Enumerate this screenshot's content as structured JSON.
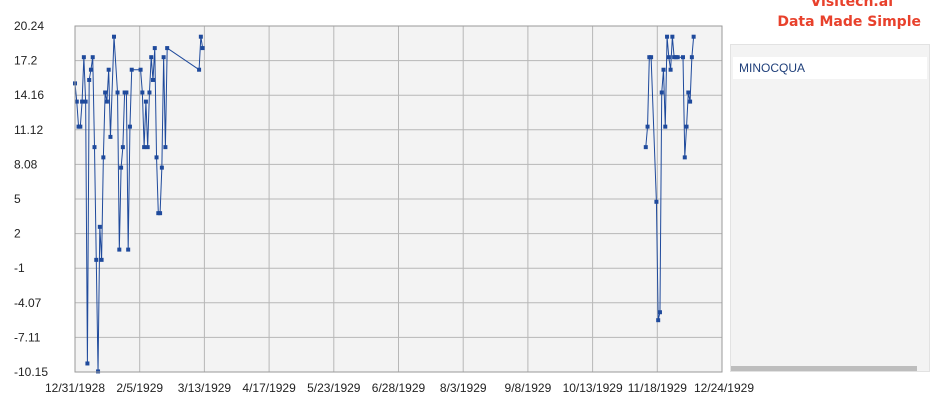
{
  "brand": {
    "line1": "Visitech.ai",
    "line2": "Data Made Simple"
  },
  "chart_data": {
    "type": "line",
    "title": "",
    "xlabel": "",
    "ylabel": "",
    "x_ticks": [
      "12/31/1928",
      "2/5/1929",
      "3/13/1929",
      "4/17/1929",
      "5/23/1929",
      "6/28/1929",
      "8/3/1929",
      "9/8/1929",
      "10/13/1929",
      "11/18/1929",
      "12/24/1929"
    ],
    "y_ticks": [
      "20.24",
      "17.2",
      "14.16",
      "11.12",
      "8.08",
      "5",
      "2",
      "-1",
      "-4.07",
      "-7.11",
      "-10.15"
    ],
    "x_range": [
      "1928-12-31",
      "1929-12-31"
    ],
    "ylim": [
      -10.15,
      20.24
    ],
    "grid": true,
    "legend_position": "right",
    "colors": {
      "series": "#1f4a9c",
      "plot_bg": "#f3f3f3",
      "grid": "#b7b7b7"
    },
    "series": [
      {
        "name": "MINOCQUA",
        "points": [
          [
            "1928-12-31",
            15.2
          ],
          [
            "1929-01-01",
            13.6
          ],
          [
            "1929-01-02",
            11.4
          ],
          [
            "1929-01-03",
            11.4
          ],
          [
            "1929-01-04",
            13.6
          ],
          [
            "1929-01-05",
            17.5
          ],
          [
            "1929-01-06",
            13.6
          ],
          [
            "1929-01-07",
            -9.4
          ],
          [
            "1929-01-08",
            15.5
          ],
          [
            "1929-01-09",
            16.4
          ],
          [
            "1929-01-10",
            17.5
          ],
          [
            "1929-01-11",
            9.6
          ],
          [
            "1929-01-12",
            -0.3
          ],
          [
            "1929-01-13",
            -10.1
          ],
          [
            "1929-01-14",
            2.6
          ],
          [
            "1929-01-15",
            -0.3
          ],
          [
            "1929-01-16",
            8.7
          ],
          [
            "1929-01-17",
            14.4
          ],
          [
            "1929-01-18",
            13.6
          ],
          [
            "1929-01-19",
            16.4
          ],
          [
            "1929-01-20",
            10.5
          ],
          [
            "1929-01-22",
            19.3
          ],
          [
            "1929-01-24",
            14.4
          ],
          [
            "1929-01-25",
            0.6
          ],
          [
            "1929-01-26",
            7.8
          ],
          [
            "1929-01-27",
            9.6
          ],
          [
            "1929-01-28",
            14.4
          ],
          [
            "1929-01-29",
            14.4
          ],
          [
            "1929-01-30",
            0.6
          ],
          [
            "1929-01-31",
            11.4
          ],
          [
            "1929-02-01",
            16.4
          ],
          [
            "1929-02-06",
            16.4
          ],
          [
            "1929-02-07",
            14.4
          ],
          [
            "1929-02-08",
            9.6
          ],
          [
            "1929-02-09",
            13.6
          ],
          [
            "1929-02-10",
            9.6
          ],
          [
            "1929-02-11",
            14.4
          ],
          [
            "1929-02-12",
            17.5
          ],
          [
            "1929-02-13",
            15.5
          ],
          [
            "1929-02-14",
            18.3
          ],
          [
            "1929-02-15",
            8.7
          ],
          [
            "1929-02-16",
            3.8
          ],
          [
            "1929-02-17",
            3.8
          ],
          [
            "1929-02-18",
            7.8
          ],
          [
            "1929-02-19",
            17.5
          ],
          [
            "1929-02-20",
            9.6
          ],
          [
            "1929-02-21",
            18.3
          ],
          [
            "1929-03-11",
            16.4
          ],
          [
            "1929-03-12",
            19.3
          ],
          [
            "1929-03-13",
            18.3
          ],
          [
            "1929-11-18",
            9.6
          ],
          [
            "1929-11-19",
            11.4
          ],
          [
            "1929-11-20",
            17.5
          ],
          [
            "1929-11-21",
            17.5
          ],
          [
            "1929-11-24",
            4.8
          ],
          [
            "1929-11-25",
            -5.6
          ],
          [
            "1929-11-26",
            -4.9
          ],
          [
            "1929-11-27",
            14.4
          ],
          [
            "1929-11-28",
            16.4
          ],
          [
            "1929-11-29",
            11.4
          ],
          [
            "1929-11-30",
            19.3
          ],
          [
            "1929-12-01",
            17.5
          ],
          [
            "1929-12-02",
            16.4
          ],
          [
            "1929-12-03",
            19.3
          ],
          [
            "1929-12-04",
            17.5
          ],
          [
            "1929-12-05",
            17.5
          ],
          [
            "1929-12-06",
            17.5
          ],
          [
            "1929-12-09",
            17.5
          ],
          [
            "1929-12-10",
            8.7
          ],
          [
            "1929-12-11",
            11.4
          ],
          [
            "1929-12-12",
            14.4
          ],
          [
            "1929-12-13",
            13.6
          ],
          [
            "1929-12-14",
            17.5
          ],
          [
            "1929-12-15",
            19.3
          ]
        ]
      }
    ]
  }
}
